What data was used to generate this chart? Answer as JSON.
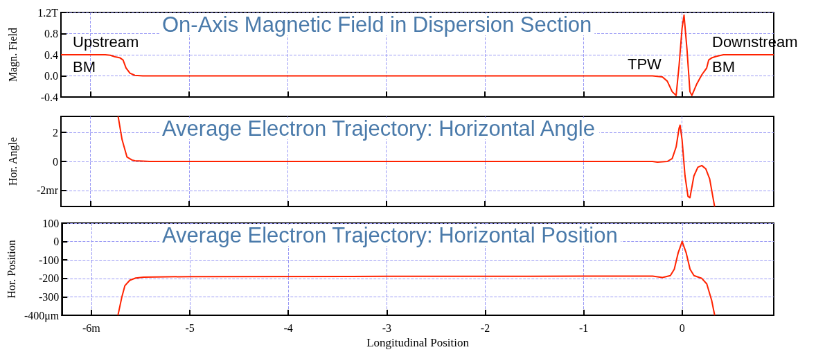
{
  "chart_data": [
    {
      "type": "line",
      "title": "On-Axis Magnetic Field in Dispersion Section",
      "ylabel": "Magn. Field",
      "x": [
        -6.3,
        -5.85,
        -5.8,
        -5.75,
        -5.7,
        -5.67,
        -5.64,
        -5.6,
        -5.55,
        -5.47,
        -0.3,
        -0.2,
        -0.15,
        -0.1,
        -0.06,
        -0.03,
        0.0,
        0.02,
        0.05,
        0.08,
        0.1,
        0.15,
        0.2,
        0.25,
        0.27,
        0.3,
        0.35,
        0.42,
        0.93
      ],
      "series": [
        {
          "color": "#ff2200",
          "values": [
            0.4,
            0.4,
            0.39,
            0.36,
            0.34,
            0.3,
            0.15,
            0.05,
            0.01,
            0.0,
            0.0,
            -0.02,
            -0.1,
            -0.3,
            -0.37,
            0.2,
            0.9,
            1.15,
            0.5,
            -0.3,
            -0.37,
            -0.15,
            0.02,
            0.15,
            0.3,
            0.34,
            0.37,
            0.4,
            0.4
          ]
        }
      ],
      "xlim": [
        -6.3,
        0.93
      ],
      "xticks": [
        -6,
        -5,
        -4,
        -3,
        -2,
        -1,
        0
      ],
      "ylim": [
        -0.4,
        1.2
      ],
      "yticks": [
        {
          "value": -0.4,
          "label": "-0.4"
        },
        {
          "value": 0,
          "label": "0.0"
        },
        {
          "value": 0.4,
          "label": "0.4"
        },
        {
          "value": 0.8,
          "label": "0.8"
        },
        {
          "value": 1.2,
          "label": "1.2T"
        }
      ],
      "annotations": [
        "Upstream\nBM",
        "TPW",
        "Downstream\nBM"
      ],
      "grid": true,
      "tick_labels": "y",
      "marker": "none",
      "line_style": "solid"
    },
    {
      "type": "line",
      "title": "Average Electron Trajectory: Horizontal Angle",
      "ylabel": "Hor. Angle",
      "x": [
        -5.72,
        -5.68,
        -5.63,
        -5.58,
        -5.55,
        -5.47,
        -5.4,
        -0.3,
        -0.25,
        -0.15,
        -0.1,
        -0.06,
        -0.03,
        -0.02,
        0.0,
        0.03,
        0.06,
        0.08,
        0.12,
        0.16,
        0.2,
        0.24,
        0.28,
        0.33
      ],
      "series": [
        {
          "color": "#ff2200",
          "values": [
            3.1,
            1.5,
            0.3,
            0.1,
            0.05,
            0.02,
            0.0,
            0.0,
            -0.05,
            0.0,
            0.2,
            1.0,
            2.3,
            2.5,
            1.5,
            -1.0,
            -2.4,
            -2.5,
            -1.0,
            -0.4,
            -0.28,
            -0.5,
            -1.2,
            -3.1
          ]
        }
      ],
      "xlim": [
        -6.3,
        0.93
      ],
      "xticks": [
        -6,
        -5,
        -4,
        -3,
        -2,
        -1,
        0
      ],
      "ylim": [
        -3.1,
        3.1
      ],
      "yticks": [
        {
          "value": -2,
          "label": "-2mr"
        },
        0,
        2
      ],
      "grid": true,
      "tick_labels": "y",
      "marker": "none",
      "line_style": "solid"
    },
    {
      "type": "line",
      "title": "Average Electron Trajectory: Horizontal Position",
      "ylabel": "Hor. Position",
      "xlabel": "Longitudinal Position",
      "x": [
        -5.73,
        -5.69,
        -5.66,
        -5.61,
        -5.55,
        -5.47,
        -5.0,
        -3.0,
        -1.0,
        -0.3,
        -0.2,
        -0.12,
        -0.08,
        -0.04,
        0.0,
        0.04,
        0.08,
        0.12,
        0.2,
        0.25,
        0.3,
        0.33
      ],
      "series": [
        {
          "color": "#ff2200",
          "values": [
            -400,
            -300,
            -240,
            -210,
            -198,
            -193,
            -190,
            -189,
            -188,
            -188,
            -195,
            -185,
            -150,
            -60,
            0,
            -60,
            -150,
            -185,
            -200,
            -230,
            -320,
            -400
          ]
        }
      ],
      "xlim": [
        -6.3,
        0.93
      ],
      "xticks": [
        {
          "value": -6,
          "label": "-6m"
        },
        -5,
        -4,
        -3,
        -2,
        -1,
        0
      ],
      "ylim": [
        -400,
        100
      ],
      "yticks": [
        {
          "value": -400,
          "label": "-400μm"
        },
        -300,
        -200,
        -100,
        0,
        100
      ],
      "grid": true,
      "marker": "none",
      "line_style": "solid"
    }
  ]
}
